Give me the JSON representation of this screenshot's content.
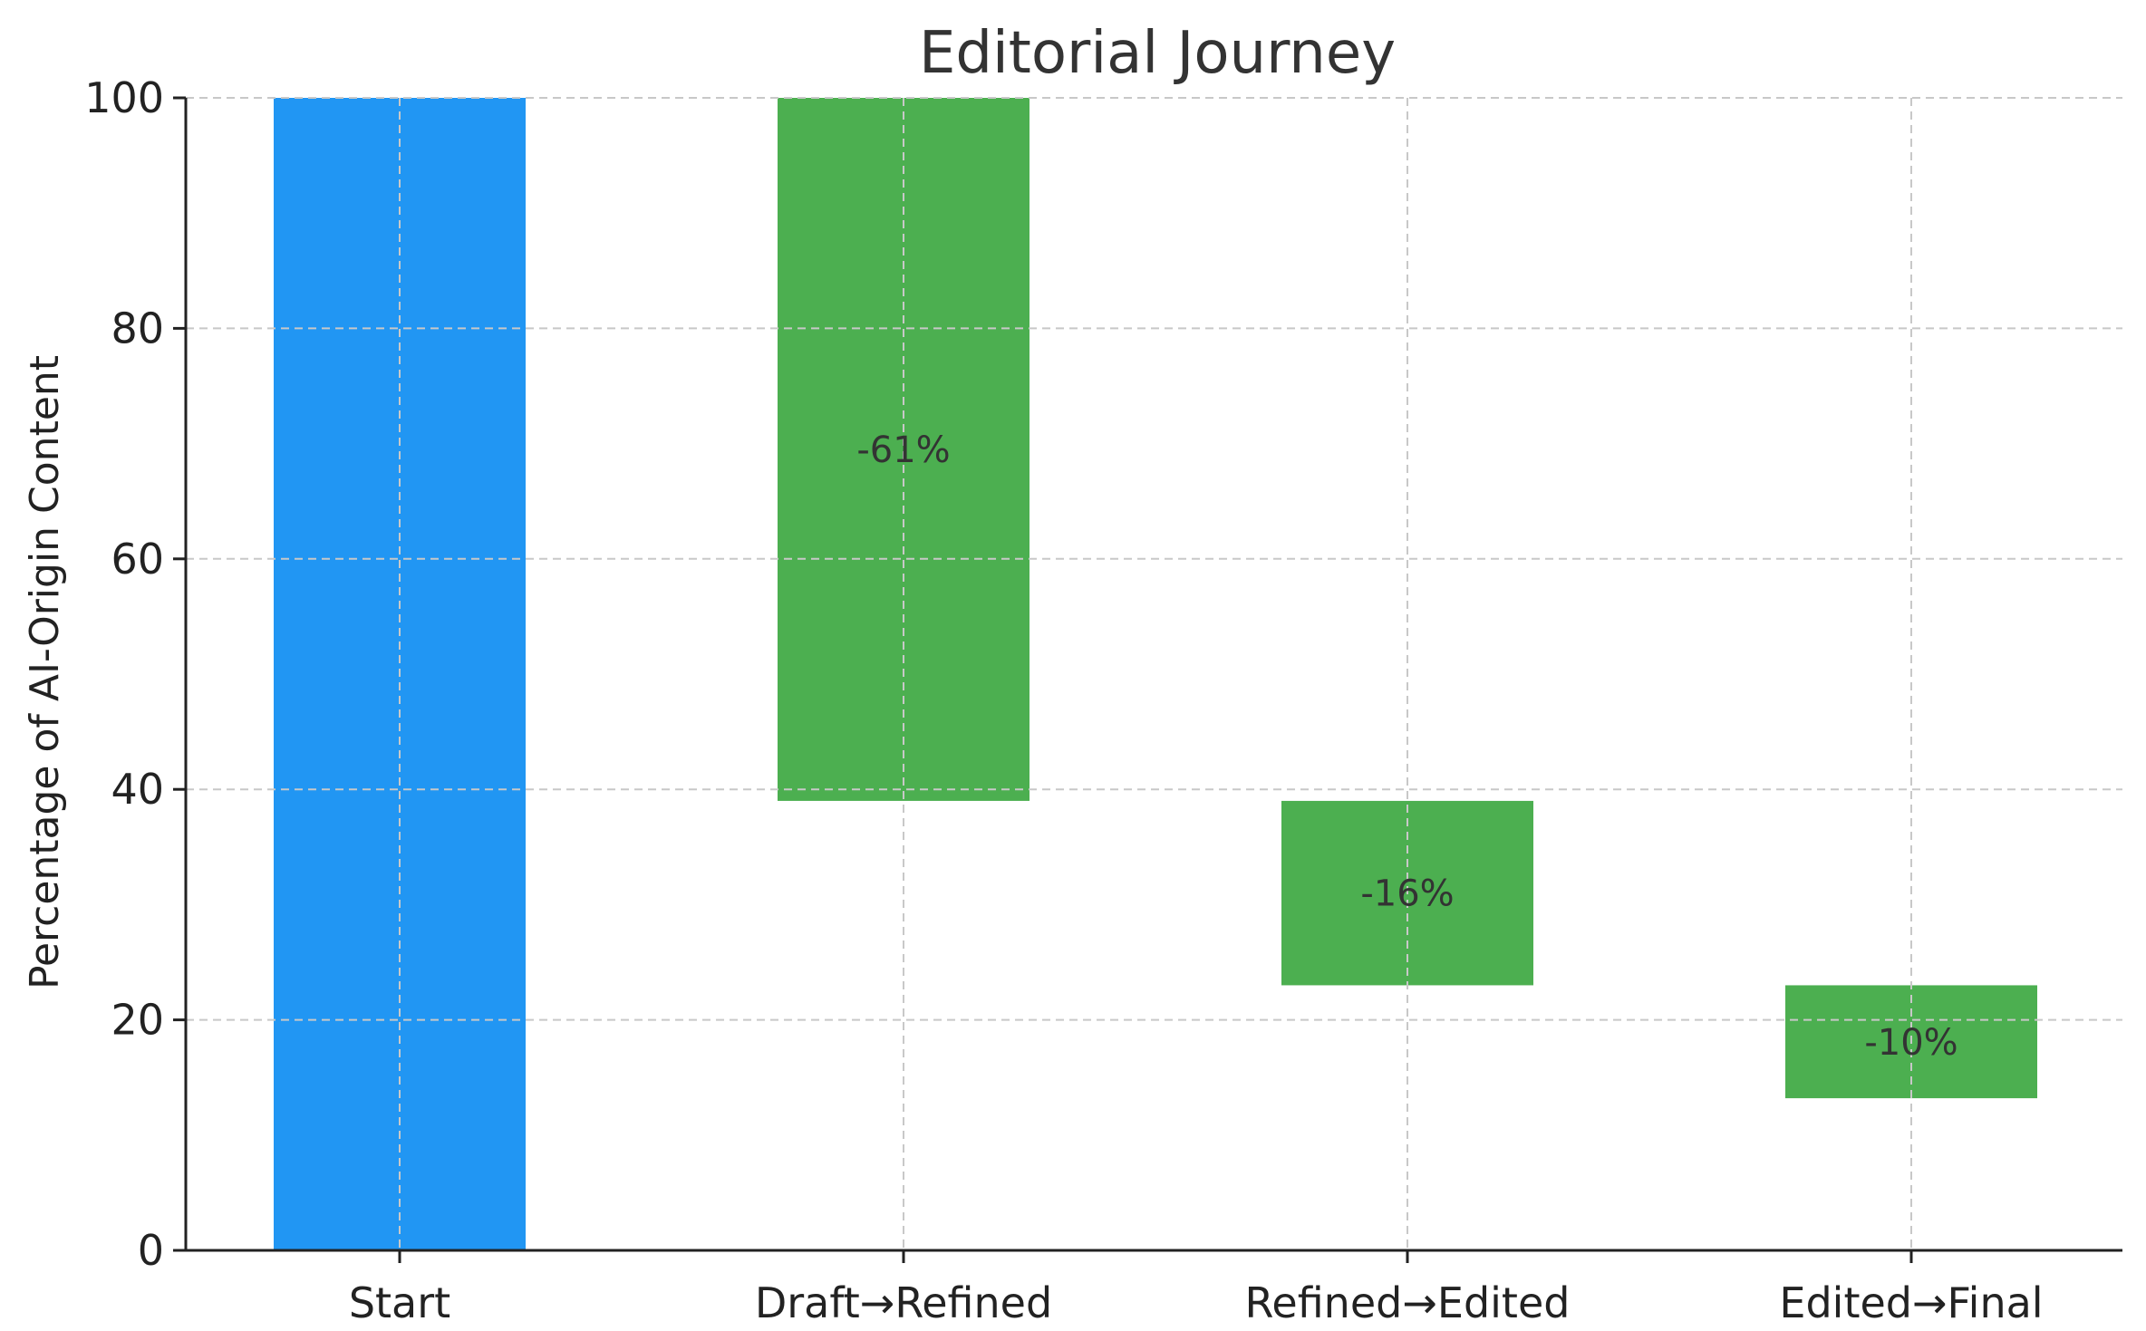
{
  "chart_data": {
    "type": "bar",
    "title": "Editorial Journey",
    "xlabel": "",
    "ylabel": "Percentage of AI-Origin Content",
    "categories": [
      "Start",
      "Draft→Refined",
      "Refined→Edited",
      "Edited→Final"
    ],
    "bars": [
      {
        "category": "Start",
        "bottom": 0,
        "top": 100,
        "label": ""
      },
      {
        "category": "Draft→Refined",
        "bottom": 39,
        "top": 100,
        "label": "-61%"
      },
      {
        "category": "Refined→Edited",
        "bottom": 23,
        "top": 39,
        "label": "-16%"
      },
      {
        "category": "Edited→Final",
        "bottom": 13.2,
        "top": 23,
        "label": "-10%"
      }
    ],
    "ylim": [
      0,
      100
    ],
    "yticks": [
      0,
      20,
      40,
      60,
      80,
      100
    ],
    "grid": true,
    "colors": {
      "start": "#2196F3",
      "decrease": "#4CAF50"
    }
  }
}
